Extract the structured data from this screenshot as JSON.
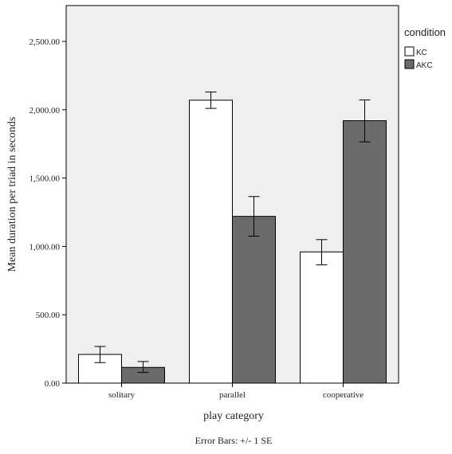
{
  "chart_data": {
    "type": "bar",
    "categories": [
      "solitary",
      "parallel",
      "cooperative"
    ],
    "series": [
      {
        "name": "KC",
        "values": [
          210,
          2070,
          960
        ],
        "error_minus": [
          150,
          2010,
          865
        ],
        "error_plus": [
          268,
          2130,
          1050
        ],
        "color": "#ffffff"
      },
      {
        "name": "AKC",
        "values": [
          115,
          1220,
          1920
        ],
        "error_minus": [
          78,
          1075,
          1765
        ],
        "error_plus": [
          158,
          1365,
          2072
        ],
        "color": "#6b6b6b"
      }
    ],
    "xlabel": "play category",
    "ylabel": "Mean duration per triad in seconds",
    "ylim": [
      0,
      2700
    ],
    "yticks": [
      0,
      500,
      1000,
      1500,
      2000,
      2500
    ],
    "ytick_labels": [
      "0.00",
      "500.00",
      "1,000.00",
      "1,500.00",
      "2,000.00",
      "2,500.00"
    ],
    "legend_title": "condition",
    "legend_position": "top-right",
    "note": "Error Bars: +/- 1 SE",
    "plot_background": "#efefef",
    "grid": false
  }
}
